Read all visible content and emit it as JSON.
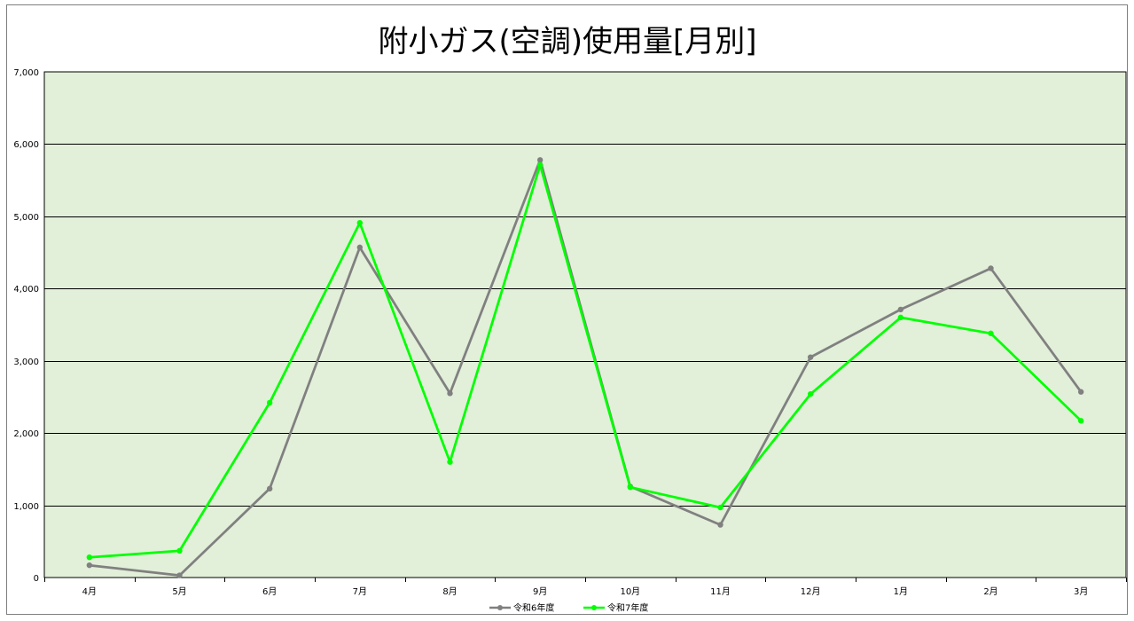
{
  "chart_data": {
    "type": "line",
    "title": "附小ガス(空調)使用量[月別]",
    "xlabel": "",
    "ylabel": "",
    "categories": [
      "4月",
      "5月",
      "6月",
      "7月",
      "8月",
      "9月",
      "10月",
      "11月",
      "12月",
      "1月",
      "2月",
      "3月"
    ],
    "ylim": [
      0,
      7000
    ],
    "yticks": [
      0,
      1000,
      2000,
      3000,
      4000,
      5000,
      6000,
      7000
    ],
    "ytick_labels": [
      "0",
      "1,000",
      "2,000",
      "3,000",
      "4,000",
      "5,000",
      "6,000",
      "7,000"
    ],
    "grid": true,
    "legend_position": "bottom",
    "plot_background": "#e2efd9",
    "series": [
      {
        "name": "令和6年度",
        "color": "#808080",
        "values": [
          170,
          30,
          1230,
          4570,
          2550,
          5780,
          1260,
          730,
          3050,
          3710,
          4280,
          2570
        ]
      },
      {
        "name": "令和7年度",
        "color": "#00ff00",
        "values": [
          280,
          370,
          2420,
          4910,
          1600,
          5710,
          1250,
          970,
          2540,
          3600,
          3380,
          2170
        ]
      }
    ]
  }
}
